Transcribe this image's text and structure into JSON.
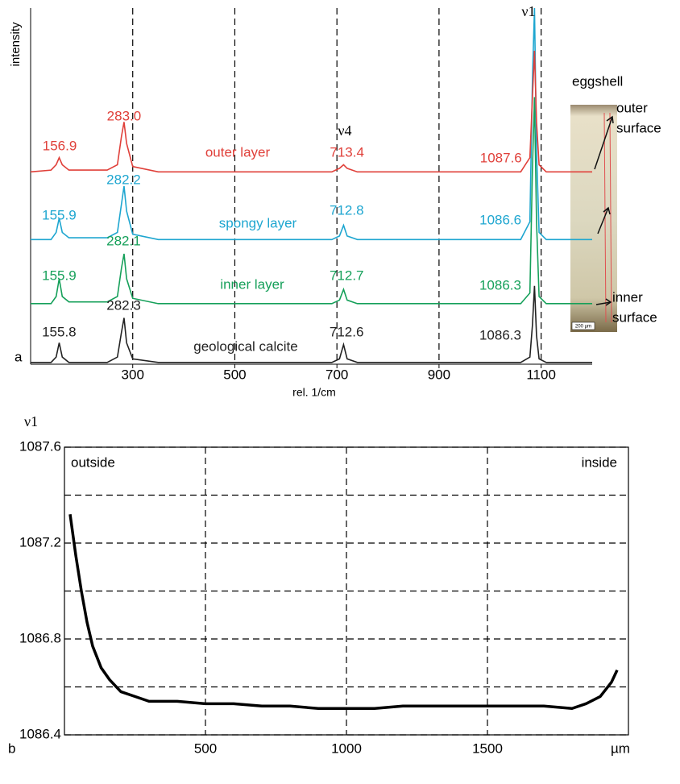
{
  "chart_data": [
    {
      "type": "line",
      "ylabel": "intensity",
      "xlabel": "rel. 1/cm",
      "panel_label": "a",
      "xlim": [
        100,
        1200
      ],
      "xticks": [
        300,
        500,
        700,
        900,
        1100
      ],
      "ylim": [
        0,
        100
      ],
      "grid_x": true,
      "x": [
        100,
        140,
        150,
        156,
        162,
        175,
        250,
        270,
        278,
        283,
        288,
        300,
        350,
        690,
        705,
        713,
        720,
        740,
        1060,
        1078,
        1083,
        1087,
        1091,
        1096,
        1110,
        1200
      ],
      "series": [
        {
          "name": "outer layer",
          "color": "#e0403a",
          "values": [
            54,
            54.5,
            56,
            58,
            56,
            54.5,
            54.5,
            56,
            64,
            68,
            62,
            55.5,
            54,
            54,
            55,
            56,
            55,
            54,
            54,
            58,
            75,
            88,
            68,
            56,
            54,
            54
          ],
          "peaks": [
            156.9,
            283,
            713.4,
            1087.6
          ],
          "peak_labels": [
            "156.9",
            "283.0",
            "713.4",
            "1087.6"
          ]
        },
        {
          "name": "spongy layer",
          "color": "#1ea6d0",
          "values": [
            35,
            35,
            37,
            41,
            37,
            35.5,
            35.5,
            37,
            45,
            50,
            43,
            36.5,
            35,
            35,
            36,
            39,
            36,
            35,
            35,
            40,
            80,
            100,
            60,
            37,
            35,
            35
          ],
          "peaks": [
            155.9,
            282.2,
            712.8,
            1086.6
          ],
          "peak_labels": [
            "155.9",
            "282.2",
            "712.8",
            "1086.6"
          ]
        },
        {
          "name": "inner layer",
          "color": "#16a05a",
          "values": [
            17,
            17,
            19,
            24,
            19,
            17.5,
            17.5,
            19,
            27,
            31,
            24,
            18.5,
            17,
            17,
            18,
            21,
            18,
            17,
            17,
            20,
            55,
            75,
            40,
            19,
            17,
            17
          ],
          "peaks": [
            155.9,
            282.1,
            712.7,
            1086.3
          ],
          "peak_labels": [
            "155.9",
            "282.1",
            "712.7",
            "1086.3"
          ]
        },
        {
          "name": "geological calcite",
          "color": "#222222",
          "values": [
            0.5,
            0.5,
            2,
            6,
            2,
            0.5,
            0.5,
            2,
            9,
            13,
            6,
            1.5,
            0.5,
            0.5,
            1.5,
            5.5,
            1.5,
            0.5,
            0.5,
            2,
            11,
            22,
            8,
            1.5,
            0.5,
            0.5
          ],
          "peaks": [
            155.8,
            282.3,
            712.6,
            1086.3
          ],
          "peak_labels": [
            "155.8",
            "282.3",
            "712.6",
            "1086.3"
          ]
        }
      ],
      "annotations": [
        "ν1",
        "ν4"
      ],
      "inset": {
        "title": "eggshell",
        "labels": [
          [
            "outer",
            "surface"
          ],
          [
            "inner",
            "surface"
          ]
        ],
        "scale_label": "200 µm"
      }
    },
    {
      "type": "line",
      "panel_label": "b",
      "ylabel": "ν1",
      "xunit": "µm",
      "xlim": [
        0,
        2000
      ],
      "xticks": [
        500,
        1000,
        1500
      ],
      "ylim": [
        1086.4,
        1087.6
      ],
      "yticks": [
        1086.4,
        1086.8,
        1087.2,
        1087.6
      ],
      "minor_yticks": [
        1086.6,
        1087.0,
        1087.4
      ],
      "grid": true,
      "corner_labels": [
        "outside",
        "inside"
      ],
      "x": [
        20,
        40,
        60,
        80,
        100,
        130,
        160,
        200,
        250,
        300,
        400,
        500,
        600,
        700,
        800,
        900,
        1000,
        1100,
        1200,
        1300,
        1400,
        1500,
        1600,
        1700,
        1800,
        1850,
        1900,
        1940,
        1960
      ],
      "series": [
        {
          "color": "#000000",
          "values": [
            1087.32,
            1087.15,
            1087.0,
            1086.87,
            1086.77,
            1086.68,
            1086.63,
            1086.58,
            1086.56,
            1086.54,
            1086.54,
            1086.53,
            1086.53,
            1086.52,
            1086.52,
            1086.51,
            1086.51,
            1086.51,
            1086.52,
            1086.52,
            1086.52,
            1086.52,
            1086.52,
            1086.52,
            1086.51,
            1086.53,
            1086.56,
            1086.62,
            1086.67
          ]
        }
      ]
    }
  ]
}
